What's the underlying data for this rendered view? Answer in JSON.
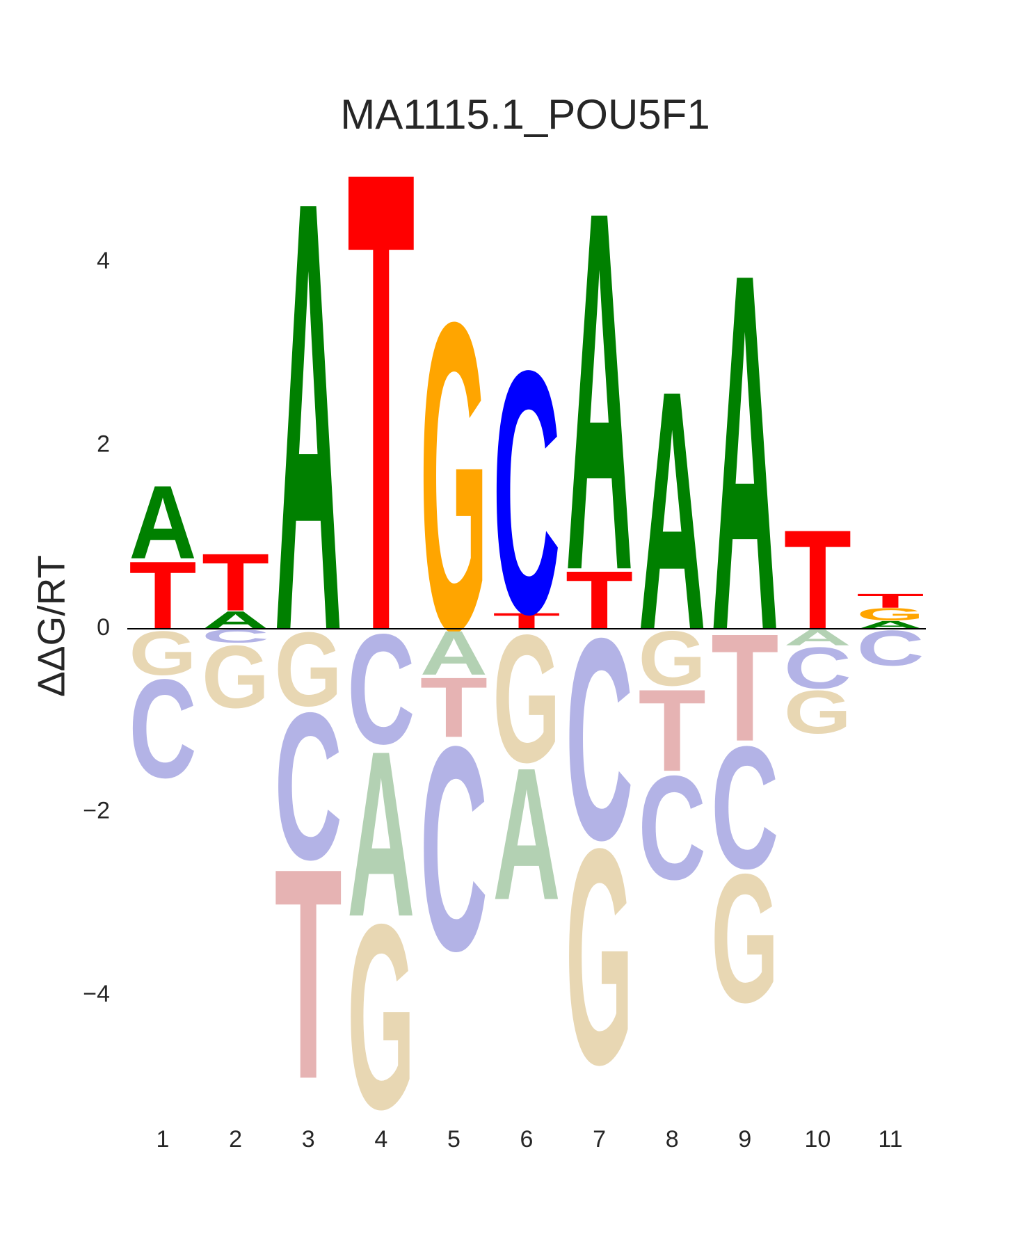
{
  "chart_data": {
    "type": "logo",
    "title": "MA1115.1_POU5F1",
    "y_label": "ΔΔG/RT",
    "categories": [
      "1",
      "2",
      "3",
      "4",
      "5",
      "6",
      "7",
      "8",
      "9",
      "10",
      "11"
    ],
    "ylim": [
      -5.3,
      5.3
    ],
    "yticks": [
      {
        "value": -4,
        "label": "−4"
      },
      {
        "value": -2,
        "label": "−2"
      },
      0,
      2,
      4
    ],
    "series": [
      {
        "name": "A",
        "color": "#008000",
        "negative_color": "#b3d1b3",
        "values": [
          0.83,
          0.2,
          4.89,
          -1.88,
          -0.5,
          -1.5,
          4.08,
          2.72,
          4.06,
          -0.18,
          0.09
        ]
      },
      {
        "name": "C",
        "color": "#0000ff",
        "negative_color": "#b3b3e6",
        "values": [
          -1.12,
          -0.15,
          -1.67,
          -1.25,
          -2.32,
          2.76,
          -2.29,
          -1.18,
          -1.39,
          -0.47,
          -0.4
        ]
      },
      {
        "name": "G",
        "color": "#ffa500",
        "negative_color": "#e8d7b3",
        "values": [
          -0.5,
          -0.71,
          -0.84,
          -2.1,
          3.5,
          -1.45,
          -2.45,
          -0.62,
          -1.46,
          -0.49,
          0.14
        ]
      },
      {
        "name": "T",
        "color": "#ff0000",
        "negative_color": "#e6b3b3",
        "values": [
          0.77,
          0.65,
          -2.39,
          5.23,
          -0.68,
          0.18,
          0.66,
          -0.93,
          -1.22,
          1.13,
          0.16
        ]
      }
    ]
  }
}
